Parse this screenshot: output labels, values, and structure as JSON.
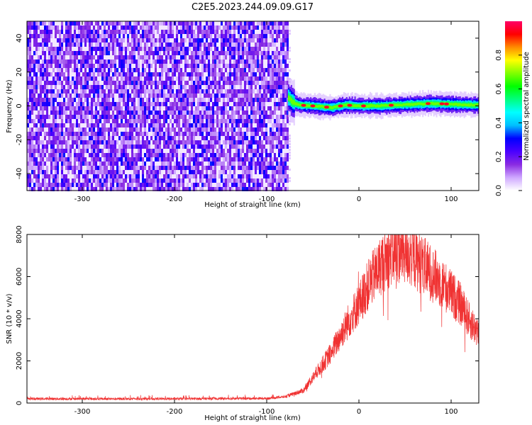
{
  "figure": {
    "title": "C2E5.2023.244.09.09.G17"
  },
  "chart_data": [
    {
      "type": "heatmap",
      "xlabel": "Height of straight line (km)",
      "ylabel": "Frequency (Hz)",
      "xlim": [
        -360,
        130
      ],
      "ylim": [
        -50,
        50
      ],
      "x_ticks": [
        -300,
        -200,
        -100,
        0,
        100
      ],
      "y_ticks": [
        -40,
        -20,
        0,
        20,
        40
      ],
      "noise_region_x": [
        -360,
        -77
      ],
      "signal": {
        "x_start": -77,
        "center_frequency": [
          [
            -77,
            5
          ],
          [
            -72,
            2
          ],
          [
            -65,
            0.5
          ],
          [
            -50,
            0
          ],
          [
            -30,
            -1
          ],
          [
            -15,
            0.5
          ],
          [
            0,
            0
          ],
          [
            20,
            0
          ],
          [
            40,
            0.5
          ],
          [
            60,
            1
          ],
          [
            80,
            1.5
          ],
          [
            100,
            1
          ],
          [
            130,
            0.5
          ]
        ],
        "peak_x": [
          -60,
          -50,
          -35,
          -20,
          -10,
          5,
          35,
          75,
          90,
          95
        ]
      },
      "colorbar": {
        "label": "Normalized spectral amplitude",
        "range": [
          0,
          1
        ],
        "ticks": [
          0.0,
          0.2,
          0.4,
          0.6,
          0.8
        ],
        "colors": [
          "#ffffff",
          "#cfa8ff",
          "#8a2be2",
          "#4a00ff",
          "#0000ff",
          "#00bfff",
          "#00ffff",
          "#00ff7f",
          "#00ff00",
          "#7fff00",
          "#ffff00",
          "#ff8c00",
          "#ff0000",
          "#ff0066"
        ]
      }
    },
    {
      "type": "line",
      "xlabel": "Height of straight line (km)",
      "ylabel": "SNR (10 * v/v)",
      "xlim": [
        -360,
        130
      ],
      "ylim": [
        0,
        8000
      ],
      "x_ticks": [
        -300,
        -200,
        -100,
        0,
        100
      ],
      "y_ticks": [
        0,
        2000,
        4000,
        6000,
        8000
      ],
      "color": "#f03232",
      "series": [
        {
          "x": [
            -360,
            -300,
            -200,
            -100,
            -80,
            -60,
            -50,
            -40,
            -30,
            -20,
            -10,
            0,
            10,
            20,
            30,
            40,
            50,
            60,
            70,
            80,
            90,
            100,
            110,
            120,
            130
          ],
          "y": [
            200,
            200,
            200,
            220,
            300,
            600,
            1200,
            1800,
            2400,
            3200,
            4000,
            4700,
            5600,
            6300,
            6900,
            7200,
            7200,
            6900,
            6500,
            6100,
            5700,
            5200,
            4700,
            3900,
            3300
          ]
        }
      ]
    }
  ]
}
